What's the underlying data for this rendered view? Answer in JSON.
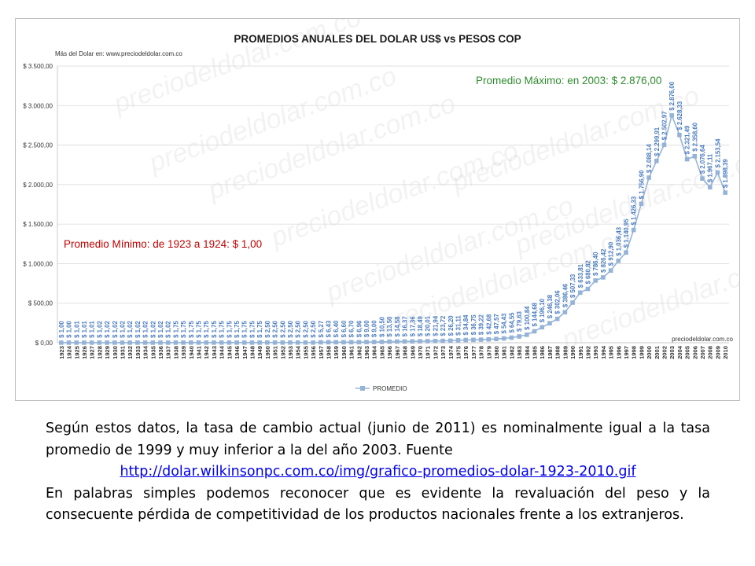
{
  "chart_data": {
    "type": "line",
    "title": "PROMEDIOS ANUALES DEL DOLAR US$ vs PESOS COP",
    "subtitle": "Más del Dolar en: www.preciodeldolar.com.co",
    "source_note": "preciodeldolar.com.co",
    "watermark": "preciodeldolar.com.co",
    "ylim": [
      0,
      3500
    ],
    "y_ticks": [
      "$ 0,00",
      "$ 500,00",
      "$ 1.000,00",
      "$ 1.500,00",
      "$ 2.000,00",
      "$ 2.500,00",
      "$ 3.000,00",
      "$ 3.500,00"
    ],
    "grid": true,
    "legend_position": "bottom-center",
    "series": [
      {
        "name": "PROMEDIO",
        "color": "#95b3d7",
        "x": [
          "1923",
          "1924",
          "1925",
          "1926",
          "1927",
          "1928",
          "1929",
          "1930",
          "1931",
          "1932",
          "1933",
          "1934",
          "1935",
          "1936",
          "1937",
          "1938",
          "1939",
          "1940",
          "1941",
          "1942",
          "1943",
          "1944",
          "1945",
          "1946",
          "1947",
          "1948",
          "1949",
          "1950",
          "1951",
          "1952",
          "1953",
          "1954",
          "1955",
          "1956",
          "1957",
          "1958",
          "1959",
          "1960",
          "1961",
          "1962",
          "1963",
          "1964",
          "1965",
          "1966",
          "1967",
          "1968",
          "1969",
          "1970",
          "1971",
          "1972",
          "1973",
          "1974",
          "1975",
          "1976",
          "1977",
          "1978",
          "1979",
          "1980",
          "1981",
          "1982",
          "1983",
          "1984",
          "1985",
          "1986",
          "1987",
          "1988",
          "1989",
          "1990",
          "1991",
          "1992",
          "1993",
          "1994",
          "1995",
          "1996",
          "1997",
          "1998",
          "1999",
          "2000",
          "2001",
          "2002",
          "2003",
          "2004",
          "2005",
          "2006",
          "2007",
          "2008",
          "2009",
          "2010"
        ],
        "values": [
          1.0,
          1.0,
          1.01,
          1.01,
          1.01,
          1.02,
          1.02,
          1.02,
          1.02,
          1.02,
          1.02,
          1.02,
          1.02,
          1.02,
          1.02,
          1.75,
          1.75,
          1.75,
          1.75,
          1.75,
          1.75,
          1.75,
          1.75,
          1.75,
          1.75,
          1.75,
          1.75,
          2.5,
          2.5,
          2.5,
          2.5,
          2.5,
          2.5,
          2.5,
          5.27,
          6.43,
          6.4,
          6.6,
          6.7,
          6.96,
          9.0,
          9.0,
          10.5,
          13.5,
          14.58,
          16.37,
          17.36,
          18.49,
          20.01,
          21.94,
          23.72,
          26.2,
          31.11,
          34.84,
          36.75,
          39.22,
          42.68,
          47.57,
          54.43,
          64.55,
          79.63,
          100.84,
          144.68,
          196.1,
          246.38,
          302.06,
          386.46,
          507.33,
          633.81,
          680.82,
          786.4,
          826.42,
          912.9,
          1036.43,
          1140.95,
          1426.33,
          1756.9,
          2088.14,
          2299.91,
          2502.97,
          2876.0,
          2628.33,
          2321.49,
          2358.6,
          2076.64,
          1967.11,
          2153.54,
          1898.39
        ],
        "labels": [
          "$ 1,00",
          "$ 1,00",
          "$ 1,01",
          "$ 1,01",
          "$ 1,01",
          "$ 1,02",
          "$ 1,02",
          "$ 1,02",
          "$ 1,02",
          "$ 1,02",
          "$ 1,02",
          "$ 1,02",
          "$ 1,02",
          "$ 1,02",
          "$ 1,02",
          "$ 1,75",
          "$ 1,75",
          "$ 1,75",
          "$ 1,75",
          "$ 1,75",
          "$ 1,75",
          "$ 1,75",
          "$ 1,75",
          "$ 1,75",
          "$ 1,75",
          "$ 1,75",
          "$ 1,75",
          "$ 2,50",
          "$ 2,50",
          "$ 2,50",
          "$ 2,50",
          "$ 2,50",
          "$ 2,50",
          "$ 2,50",
          "$ 5,27",
          "$ 6,43",
          "$ 6,40",
          "$ 6,60",
          "$ 6,70",
          "$ 6,96",
          "$ 9,00",
          "$ 9,00",
          "$ 10,50",
          "$ 13,50",
          "$ 14,58",
          "$ 16,37",
          "$ 17,36",
          "$ 18,49",
          "$ 20,01",
          "$ 21,94",
          "$ 23,72",
          "$ 26,20",
          "$ 31,11",
          "$ 34,84",
          "$ 36,75",
          "$ 39,22",
          "$ 42,68",
          "$ 47,57",
          "$ 54,43",
          "$ 64,55",
          "$ 79,63",
          "$ 100,84",
          "$ 144,68",
          "$ 196,10",
          "$ 246,38",
          "$ 302,06",
          "$ 386,46",
          "$ 507,33",
          "$ 633,81",
          "$ 680,82",
          "$ 786,40",
          "$ 826,42",
          "$ 912,90",
          "$ 1.036,43",
          "$ 1.140,95",
          "$ 1.426,33",
          "$ 1.756,90",
          "$ 2.088,14",
          "$ 2.299,91",
          "$ 2.502,97",
          "$ 2.876,00",
          "$ 2.628,33",
          "$ 2.321,49",
          "$ 2.358,60",
          "$ 2.076,64",
          "$ 1.967,11",
          "$ 2.153,54",
          "$ 1.898,39"
        ]
      }
    ],
    "annotations": [
      {
        "text": "Promedio Máximo: en 2003: $ 2.876,00",
        "color": "#2e8b2e"
      },
      {
        "text": "Promedio Mínimo: de 1923 a 1924: $ 1,00",
        "color": "#c00000"
      }
    ]
  },
  "caption": {
    "line1": "Según estos datos, la tasa de cambio actual (junio de 2011) es nominalmente igual a la tasa promedio de 1999 y muy inferior a la del año 2003. Fuente",
    "link": "http://dolar.wilkinsonpc.com.co/img/grafico-promedios-dolar-1923-2010.gif",
    "paragraph2": "En palabras simples podemos reconocer que es evidente la revaluación del  peso y la consecuente pérdida de competitividad de los productos nacionales frente a los extranjeros."
  }
}
